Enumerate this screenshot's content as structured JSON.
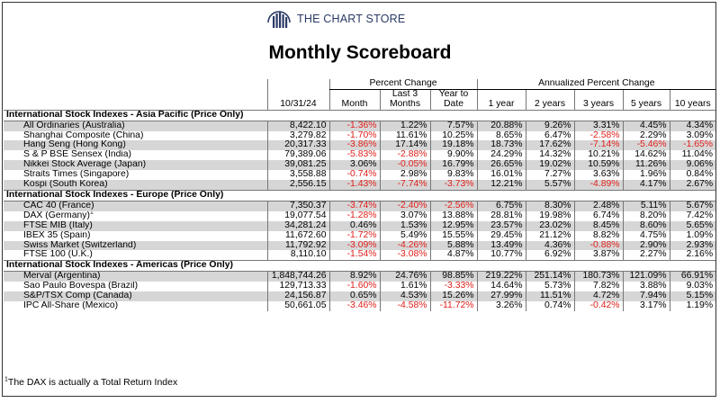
{
  "brand": {
    "name": "THE CHART STORE",
    "logo_icon": "bar-chart-circle-icon",
    "color": "#2b3a67"
  },
  "title": "Monthly Scoreboard",
  "header": {
    "group1": "Percent Change",
    "group2": "Annualized Percent Change",
    "date": "10/31/24",
    "month": "Month",
    "last3_l1": "Last 3",
    "last3_l2": "Months",
    "ytd_l1": "Year to",
    "ytd_l2": "Date",
    "y1": "1 year",
    "y2": "2 years",
    "y3": "3 years",
    "y5": "5 years",
    "y10": "10 years"
  },
  "sections": [
    {
      "title": "International Stock Indexes - Asia Pacific (Price Only)",
      "rows": [
        {
          "name": "All Ordinaries (Australia)",
          "sup": "",
          "vals": [
            "8,422.10",
            "-1.36%",
            "1.22%",
            "7.57%",
            "20.88%",
            "9.26%",
            "3.31%",
            "4.45%",
            "4.34%"
          ]
        },
        {
          "name": "Shanghai Composite (China)",
          "sup": "",
          "vals": [
            "3,279.82",
            "-1.70%",
            "11.61%",
            "10.25%",
            "8.65%",
            "6.47%",
            "-2.58%",
            "2.29%",
            "3.09%"
          ]
        },
        {
          "name": "Hang Seng (Hong Kong)",
          "sup": "",
          "vals": [
            "20,317.33",
            "-3.86%",
            "17.14%",
            "19.18%",
            "18.73%",
            "17.62%",
            "-7.14%",
            "-5.46%",
            "-1.65%"
          ]
        },
        {
          "name": "S & P BSE Sensex (India)",
          "sup": "",
          "vals": [
            "79,389.06",
            "-5.83%",
            "-2.88%",
            "9.90%",
            "24.29%",
            "14.32%",
            "10.21%",
            "14.62%",
            "11.04%"
          ]
        },
        {
          "name": "Nikkei Stock Average (Japan)",
          "sup": "",
          "vals": [
            "39,081.25",
            "3.06%",
            "-0.05%",
            "16.79%",
            "26.65%",
            "19.02%",
            "10.59%",
            "11.26%",
            "9.06%"
          ]
        },
        {
          "name": "Straits Times (Singapore)",
          "sup": "",
          "vals": [
            "3,558.88",
            "-0.74%",
            "2.98%",
            "9.83%",
            "16.01%",
            "7.27%",
            "3.63%",
            "1.96%",
            "0.84%"
          ]
        },
        {
          "name": "Kospi (South Korea)",
          "sup": "",
          "vals": [
            "2,556.15",
            "-1.43%",
            "-7.74%",
            "-3.73%",
            "12.21%",
            "5.57%",
            "-4.89%",
            "4.17%",
            "2.67%"
          ]
        }
      ]
    },
    {
      "title": "International Stock Indexes - Europe (Price Only)",
      "rows": [
        {
          "name": "CAC 40 (France)",
          "sup": "",
          "vals": [
            "7,350.37",
            "-3.74%",
            "-2.40%",
            "-2.56%",
            "6.75%",
            "8.30%",
            "2.48%",
            "5.11%",
            "5.67%"
          ]
        },
        {
          "name": "DAX (Germany)",
          "sup": "1",
          "vals": [
            "19,077.54",
            "-1.28%",
            "3.07%",
            "13.88%",
            "28.81%",
            "19.98%",
            "6.74%",
            "8.20%",
            "7.42%"
          ]
        },
        {
          "name": "FTSE MIB (Italy)",
          "sup": "",
          "vals": [
            "34,281.24",
            "0.46%",
            "1.53%",
            "12.95%",
            "23.57%",
            "23.02%",
            "8.45%",
            "8.60%",
            "5.65%"
          ]
        },
        {
          "name": "IBEX 35 (Spain)",
          "sup": "",
          "vals": [
            "11,672.60",
            "-1.72%",
            "5.49%",
            "15.55%",
            "29.45%",
            "21.12%",
            "8.82%",
            "4.75%",
            "1.09%"
          ]
        },
        {
          "name": "Swiss Market (Switzerland)",
          "sup": "",
          "vals": [
            "11,792.92",
            "-3.09%",
            "-4.26%",
            "5.88%",
            "13.49%",
            "4.36%",
            "-0.88%",
            "2.90%",
            "2.93%"
          ]
        },
        {
          "name": "FTSE 100 (U.K.)",
          "sup": "",
          "vals": [
            "8,110.10",
            "-1.54%",
            "-3.08%",
            "4.87%",
            "10.77%",
            "6.92%",
            "3.87%",
            "2.27%",
            "2.16%"
          ]
        }
      ]
    },
    {
      "title": "International Stock Indexes - Americas (Price Only)",
      "rows": [
        {
          "name": "Merval (Argentina)",
          "sup": "",
          "vals": [
            "1,848,744.26",
            "8.92%",
            "24.76%",
            "98.85%",
            "219.22%",
            "251.14%",
            "180.73%",
            "121.09%",
            "66.91%"
          ]
        },
        {
          "name": "Sao Paulo Bovespa (Brazil)",
          "sup": "",
          "vals": [
            "129,713.33",
            "-1.60%",
            "1.61%",
            "-3.33%",
            "14.64%",
            "5.73%",
            "7.82%",
            "3.88%",
            "9.03%"
          ]
        },
        {
          "name": "S&P/TSX Comp (Canada)",
          "sup": "",
          "vals": [
            "24,156.87",
            "0.65%",
            "4.53%",
            "15.26%",
            "27.99%",
            "11.51%",
            "4.72%",
            "7.94%",
            "5.15%"
          ]
        },
        {
          "name": "IPC All-Share (Mexico)",
          "sup": "",
          "vals": [
            "50,661.05",
            "-3.46%",
            "-4.58%",
            "-11.72%",
            "3.26%",
            "0.74%",
            "-0.42%",
            "3.17%",
            "1.19%"
          ]
        }
      ]
    }
  ],
  "footnote": {
    "sup": "1",
    "text": "The DAX is actually a Total Return Index"
  },
  "colors": {
    "negative": "#e0201b",
    "shade": "#d6d6d6"
  }
}
